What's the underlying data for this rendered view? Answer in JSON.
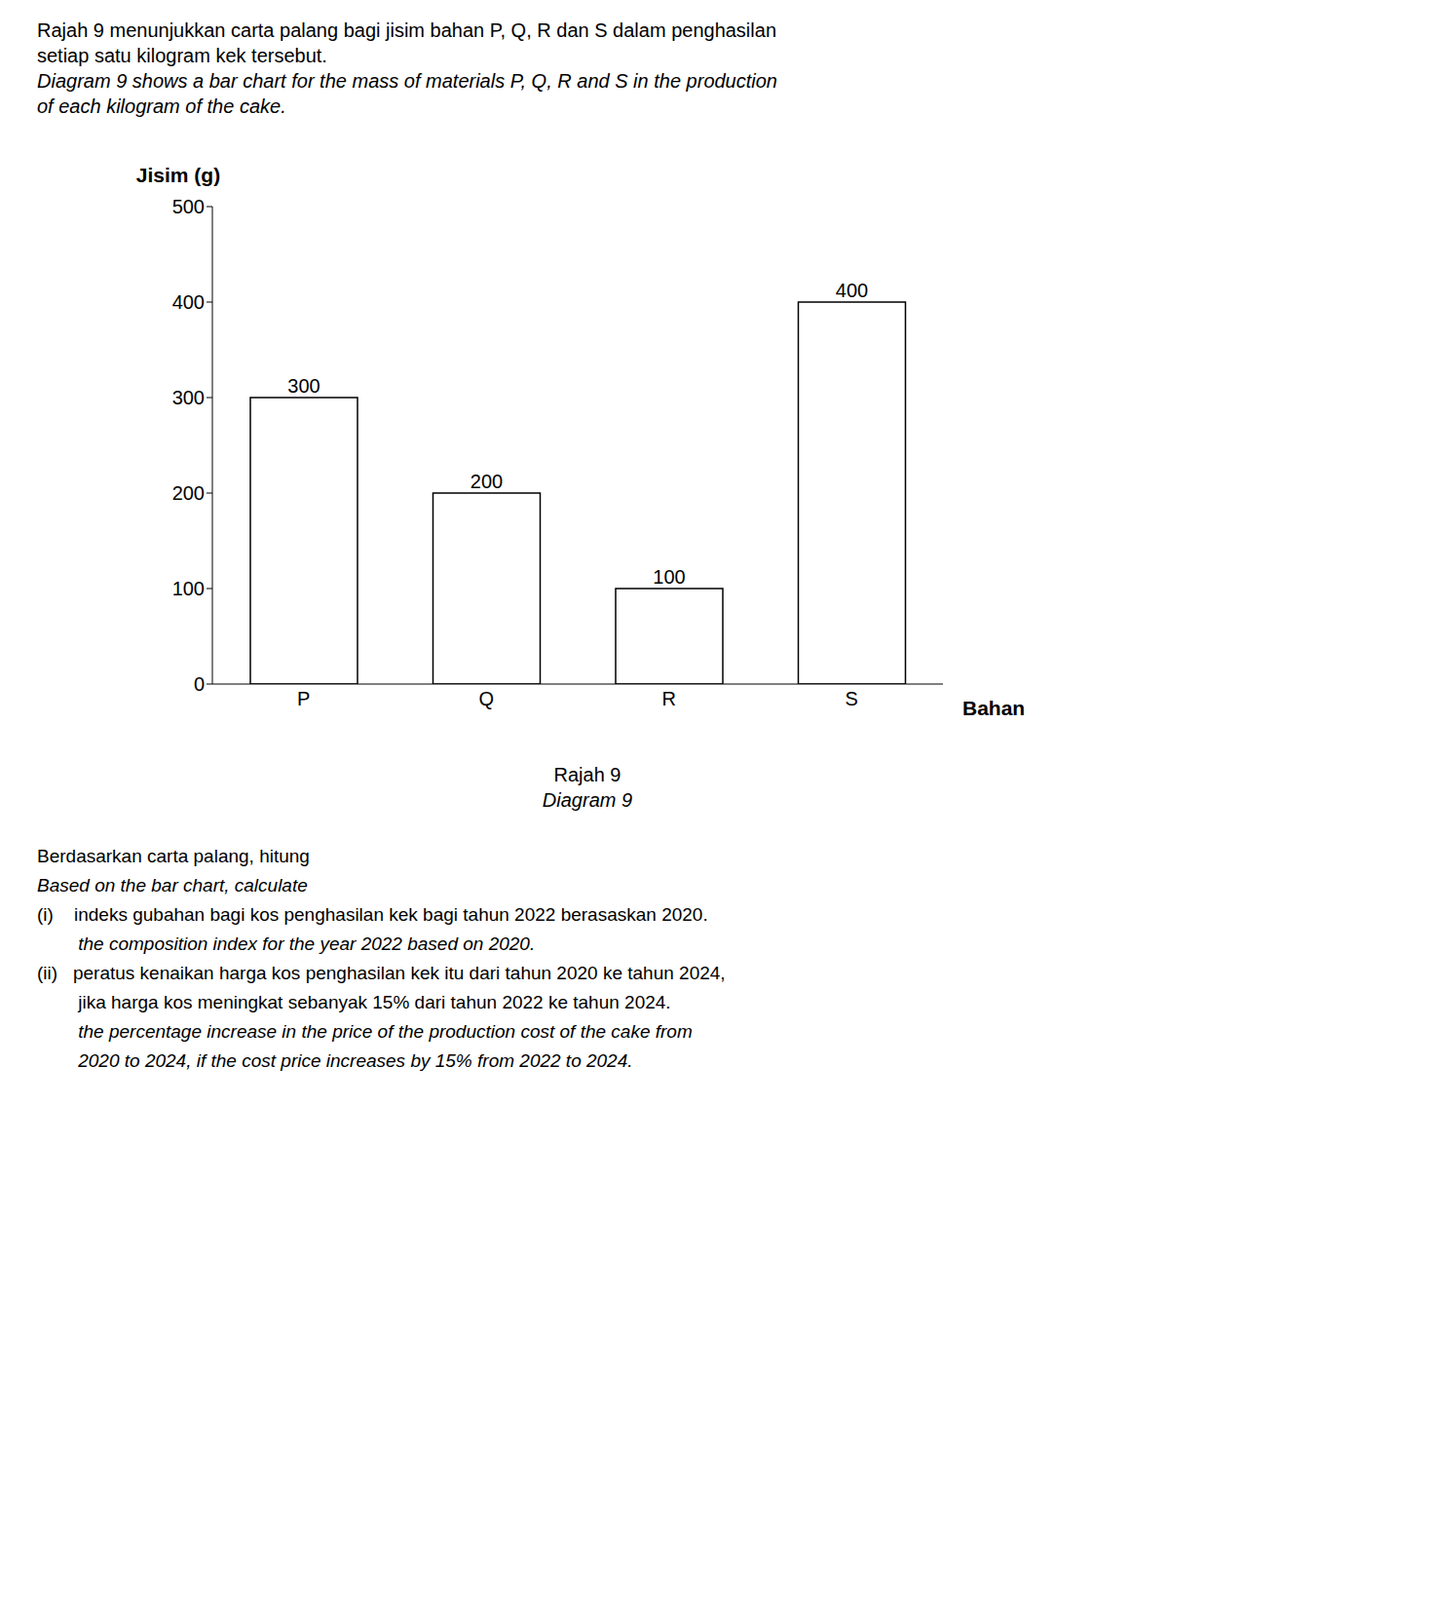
{
  "chart_data": {
    "type": "bar",
    "title": [
      "Rajah 9 menunjukkan carta palang bagi jisim bahan P, Q, R dan S dalam penghasilan",
      "setiap satu kilogram kek tersebut.",
      "Diagram 9 shows a bar chart for the mass of materials P, Q, R and S in the production",
      "of each kilogram of the cake."
    ],
    "subtitle": [
      "Rajah 9",
      "Diagram 9"
    ],
    "annotations": [
      "Berdasarkan carta palang, hitung",
      "Based on the bar chart, calculate",
      "(i)    indeks gubahan bagi kos penghasilan kek bagi tahun 2022 berasaskan 2020.",
      "        the composition index for the year 2022 based on 2020.",
      "(ii)   peratus kenaikan harga kos penghasilan kek itu dari tahun 2020 ke tahun 2024,",
      "        jika harga kos meningkat sebanyak 15% dari tahun 2022 ke tahun 2024.",
      "        the percentage increase in the price of the production cost of the cake from",
      "        2020 to 2024, if the cost price increases by 15% from 2022 to 2024."
    ],
    "xlabel": "Bahan",
    "ylabel": "Jisim (g)",
    "categories": [
      "P",
      "Q",
      "R",
      "S"
    ],
    "values": [
      300,
      200,
      100,
      400
    ],
    "color": "#ffffff",
    "ylim": [
      0,
      500
    ],
    "yticks": [
      0,
      100,
      200,
      300,
      400,
      500
    ],
    "grid": false,
    "data_labels": true
  }
}
